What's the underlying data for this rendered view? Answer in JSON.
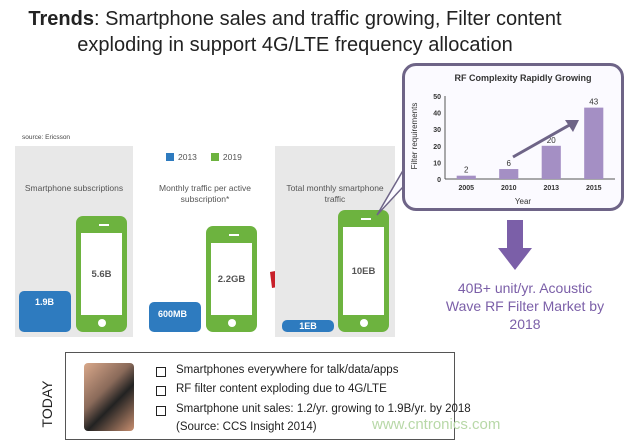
{
  "header": {
    "title_bold": "Trends",
    "title_rest": ": Smartphone sales and traffic growing, Filter content",
    "title_line2": "exploding in support 4G/LTE frequency allocation"
  },
  "source": "source: Ericsson",
  "legend": [
    {
      "label": "2013",
      "color": "#2e7bbf"
    },
    {
      "label": "2019",
      "color": "#6db33f"
    }
  ],
  "panels": [
    {
      "label": "Smartphone subscriptions",
      "v2013": "1.9B",
      "v2019": "5.6B"
    },
    {
      "label": "Monthly traffic per active subscription*",
      "v2013": "600MB",
      "v2019": "2.2GB"
    },
    {
      "label": "Total monthly smartphone traffic",
      "v2013": "1EB",
      "v2019": "10EB"
    }
  ],
  "market_text": "40B+ unit/yr. Acoustic Wave RF Filter Market by 2018",
  "today": {
    "label": "TODAY",
    "bullets": [
      "Smartphones everywhere for talk/data/apps",
      "RF filter content exploding due to 4G/LTE",
      "Smartphone unit sales: 1.2/yr. growing to 1.9B/yr. by 2018",
      "(Source: CCS Insight 2014)"
    ]
  },
  "watermark": "www.cntronics.com",
  "chart_data": {
    "type": "bar",
    "title": "RF Complexity Rapidly Growing",
    "xlabel": "Year",
    "ylabel": "Filter requirements",
    "categories": [
      "2005",
      "2010",
      "2013",
      "2015"
    ],
    "values": [
      2,
      6,
      20,
      43
    ],
    "ylim": [
      0,
      50
    ],
    "yticks": [
      0,
      10,
      20,
      30,
      40,
      50
    ],
    "grid": false,
    "bar_color": "#a48fc4"
  }
}
